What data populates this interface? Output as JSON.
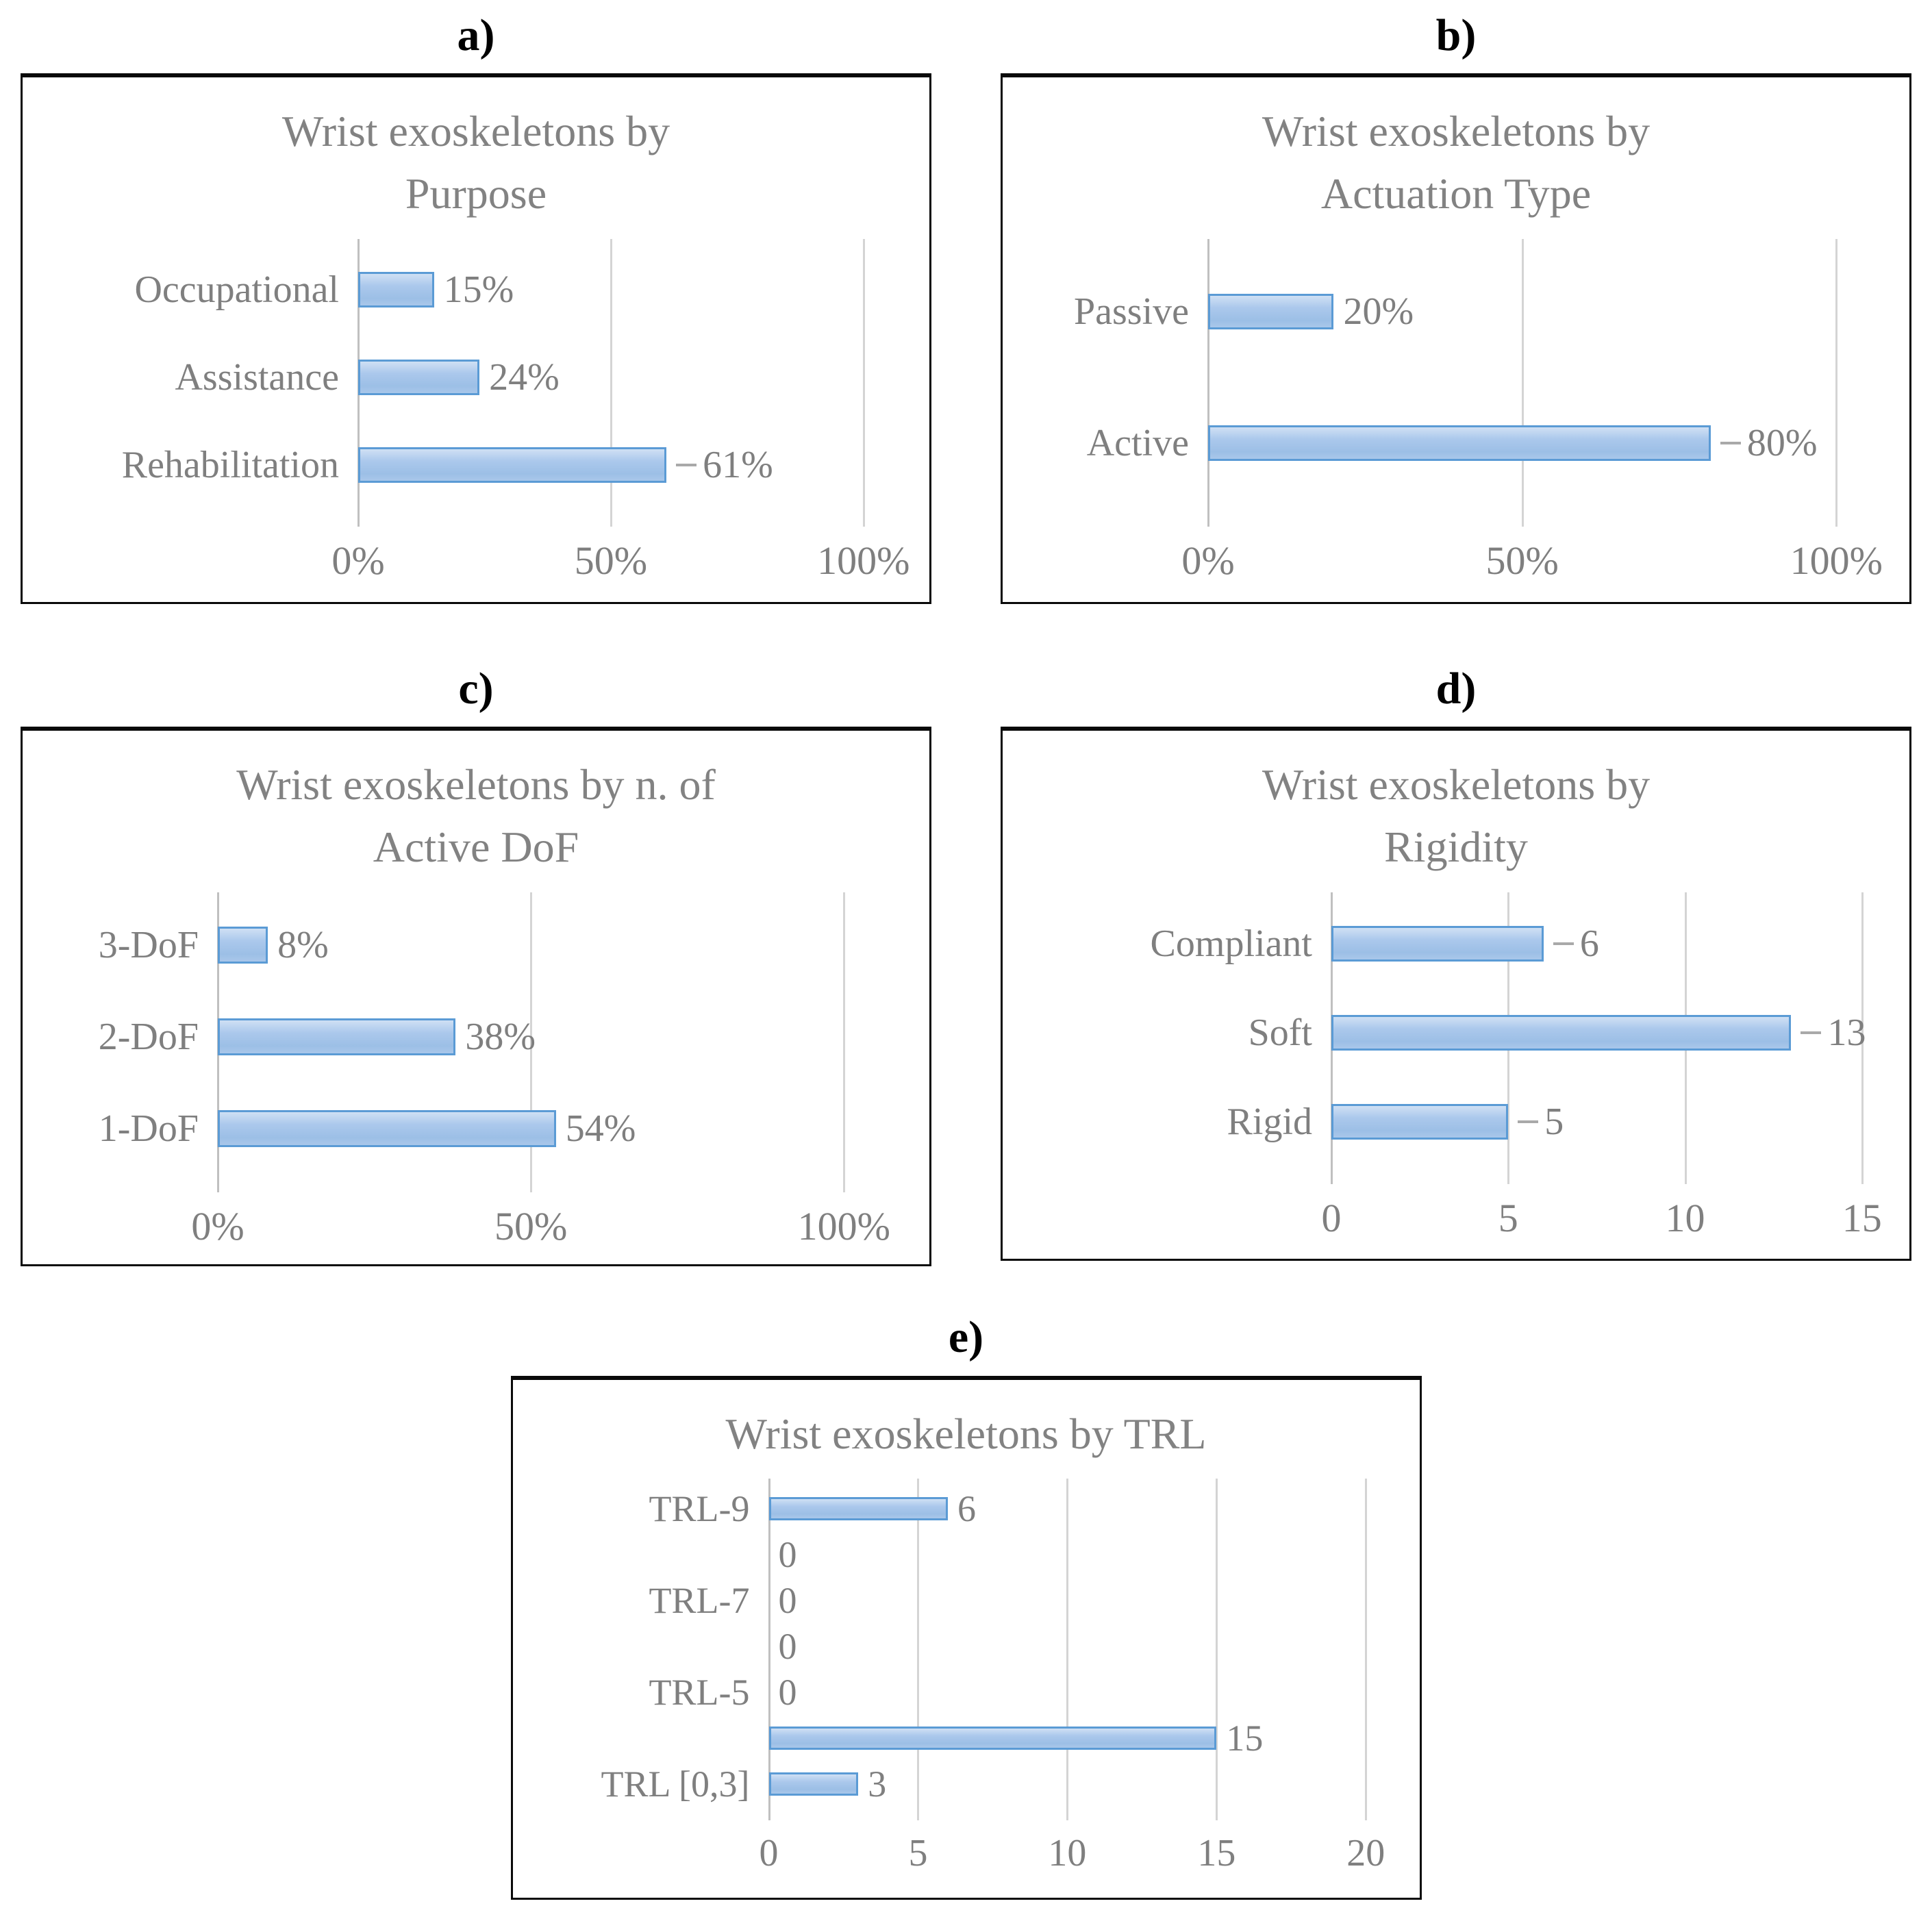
{
  "colors": {
    "bar_fill": "#A9C7EA",
    "bar_fill_light": "#CFE0F4",
    "bar_border": "#5B9BD5",
    "text_gray": "#7F7F7F",
    "title_gray": "#828282",
    "gridline": "#D4D4D4",
    "axis_line": "#C0C0C0",
    "panel_border": "#000000",
    "leader_line": "#A9A9A9"
  },
  "chart_data": [
    {
      "id": "a",
      "panel_label": "a)",
      "type": "bar",
      "orientation": "horizontal",
      "grid": true,
      "legend": false,
      "title": "Wrist exoskeletons by Purpose",
      "title_lines": [
        "Wrist exoskeletons by",
        "Purpose"
      ],
      "categories": [
        "Occupational",
        "Assistance",
        "Rehabilitation"
      ],
      "values": [
        15,
        24,
        61
      ],
      "data_labels": [
        "15%",
        "24%",
        "61%"
      ],
      "xlim": [
        0,
        100
      ],
      "plot_domain_max": 111,
      "ticks": [
        {
          "v": 0,
          "label": "0%"
        },
        {
          "v": 50,
          "label": "50%"
        },
        {
          "v": 100,
          "label": "100%"
        }
      ]
    },
    {
      "id": "b",
      "panel_label": "b)",
      "type": "bar",
      "orientation": "horizontal",
      "grid": true,
      "legend": false,
      "title": "Wrist exoskeletons by Actuation Type",
      "title_lines": [
        "Wrist exoskeletons by",
        "Actuation Type"
      ],
      "categories": [
        "Passive",
        "Active"
      ],
      "values": [
        20,
        80
      ],
      "data_labels": [
        "20%",
        "80%"
      ],
      "xlim": [
        0,
        100
      ],
      "plot_domain_max": 110,
      "ticks": [
        {
          "v": 0,
          "label": "0%"
        },
        {
          "v": 50,
          "label": "50%"
        },
        {
          "v": 100,
          "label": "100%"
        }
      ]
    },
    {
      "id": "c",
      "panel_label": "c)",
      "type": "bar",
      "orientation": "horizontal",
      "grid": true,
      "legend": false,
      "title": "Wrist exoskeletons by n. of Active DoF",
      "title_lines": [
        "Wrist exoskeletons by n. of",
        "Active DoF"
      ],
      "categories": [
        "3-DoF",
        "2-DoF",
        "1-DoF"
      ],
      "values": [
        8,
        38,
        54
      ],
      "data_labels": [
        "8%",
        "38%",
        "54%"
      ],
      "xlim": [
        0,
        100
      ],
      "plot_domain_max": 112,
      "ticks": [
        {
          "v": 0,
          "label": "0%"
        },
        {
          "v": 50,
          "label": "50%"
        },
        {
          "v": 100,
          "label": "100%"
        }
      ]
    },
    {
      "id": "d",
      "panel_label": "d)",
      "type": "bar",
      "orientation": "horizontal",
      "grid": true,
      "legend": false,
      "title": "Wrist exoskeletons by Rigidity",
      "title_lines": [
        "Wrist exoskeletons by",
        "Rigidity"
      ],
      "categories": [
        "Compliant",
        "Soft",
        "Rigid"
      ],
      "values": [
        6,
        13,
        5
      ],
      "data_labels": [
        "6",
        "13",
        "5"
      ],
      "xlim": [
        0,
        15
      ],
      "plot_domain_max": 16.05,
      "ticks": [
        {
          "v": 0,
          "label": "0"
        },
        {
          "v": 5,
          "label": "5"
        },
        {
          "v": 10,
          "label": "10"
        },
        {
          "v": 15,
          "label": "15"
        }
      ]
    },
    {
      "id": "e",
      "panel_label": "e)",
      "type": "bar",
      "orientation": "horizontal",
      "grid": true,
      "legend": false,
      "title": "Wrist exoskeletons by TRL",
      "title_lines": [
        "Wrist exoskeletons by TRL"
      ],
      "categories": [
        "TRL-9",
        "",
        "TRL-7",
        "",
        "TRL-5",
        "",
        "TRL [0,3]"
      ],
      "values": [
        6,
        0,
        0,
        0,
        0,
        15,
        3
      ],
      "data_labels": [
        "6",
        "0",
        "0",
        "0",
        "0",
        "15",
        "3"
      ],
      "xlim": [
        0,
        20
      ],
      "plot_domain_max": 21.45,
      "ticks": [
        {
          "v": 0,
          "label": "0"
        },
        {
          "v": 5,
          "label": "5"
        },
        {
          "v": 10,
          "label": "10"
        },
        {
          "v": 15,
          "label": "15"
        },
        {
          "v": 20,
          "label": "20"
        }
      ]
    }
  ]
}
